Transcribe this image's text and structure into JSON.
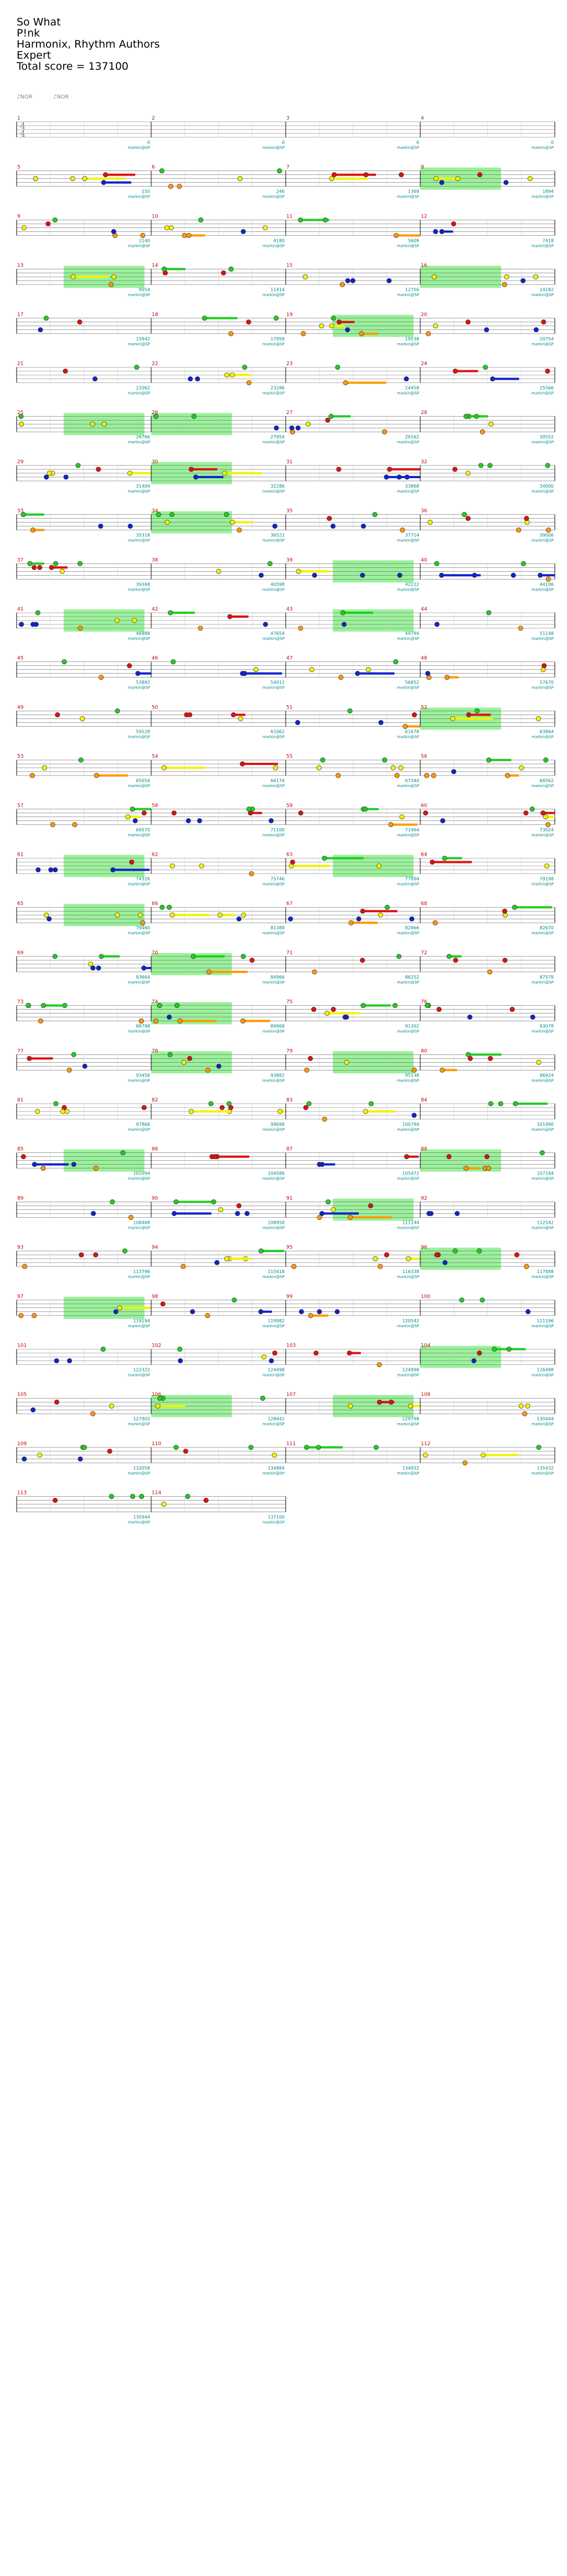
{
  "header": {
    "song_title": "So What",
    "artist": "P!nk",
    "charter": "Harmonix, Rhythm Authors",
    "difficulty": "Expert",
    "total_score_label": "Total score = 137100"
  },
  "toolbar": {
    "item1": "♪NOR",
    "item2": "♪NOR"
  },
  "time_signature": {
    "numerator": "4",
    "denominator": "4"
  },
  "colors": {
    "green": "#22cc22",
    "red": "#dd1111",
    "yellow": "#f2f200",
    "blue": "#1122cc",
    "orange": "#ff9900",
    "star_power": "#88ee88",
    "measure_number": "#cc0000",
    "score_text": "#008888",
    "beat_text": "#999999"
  },
  "chart_data": {
    "type": "table",
    "measure_scores": [
      "0",
      "0",
      "0",
      "0",
      "150",
      "246",
      "1369",
      "1894",
      "2140",
      "4180",
      "5608",
      "7418",
      "9054",
      "11414",
      "12756",
      "14182",
      "15942",
      "17958",
      "19538",
      "20754",
      "22062",
      "23286",
      "24458",
      "25566",
      "26766",
      "27954",
      "29162",
      "30552",
      "31404",
      "32286",
      "33868",
      "34000",
      "35318",
      "36522",
      "37714",
      "39006",
      "39368",
      "40598",
      "42222",
      "44106",
      "46888",
      "47654",
      "49794",
      "51148",
      "53882",
      "54912",
      "56852",
      "57670",
      "59528",
      "61062",
      "61678",
      "63864",
      "65054",
      "66174",
      "67344",
      "68562",
      "69570",
      "71100",
      "71964",
      "73024",
      "74326",
      "75746",
      "77894",
      "79198",
      "79460",
      "81388",
      "82866",
      "82670",
      "83664",
      "84966",
      "86252",
      "87578",
      "88788",
      "89868",
      "91302",
      "93078",
      "93458",
      "93882",
      "95138",
      "96924",
      "97866",
      "99698",
      "100794",
      "101990",
      "102094",
      "104586",
      "105472",
      "107184",
      "108468",
      "108958",
      "111144",
      "112542",
      "113796",
      "115418",
      "116338",
      "117888",
      "119194",
      "119982",
      "120542",
      "121196",
      "122322",
      "124498",
      "124998",
      "126498",
      "127902",
      "128442",
      "129798",
      "130444",
      "132058",
      "134884",
      "134932",
      "135432",
      "135944",
      "137100"
    ],
    "score_caption": "markin@SP"
  }
}
